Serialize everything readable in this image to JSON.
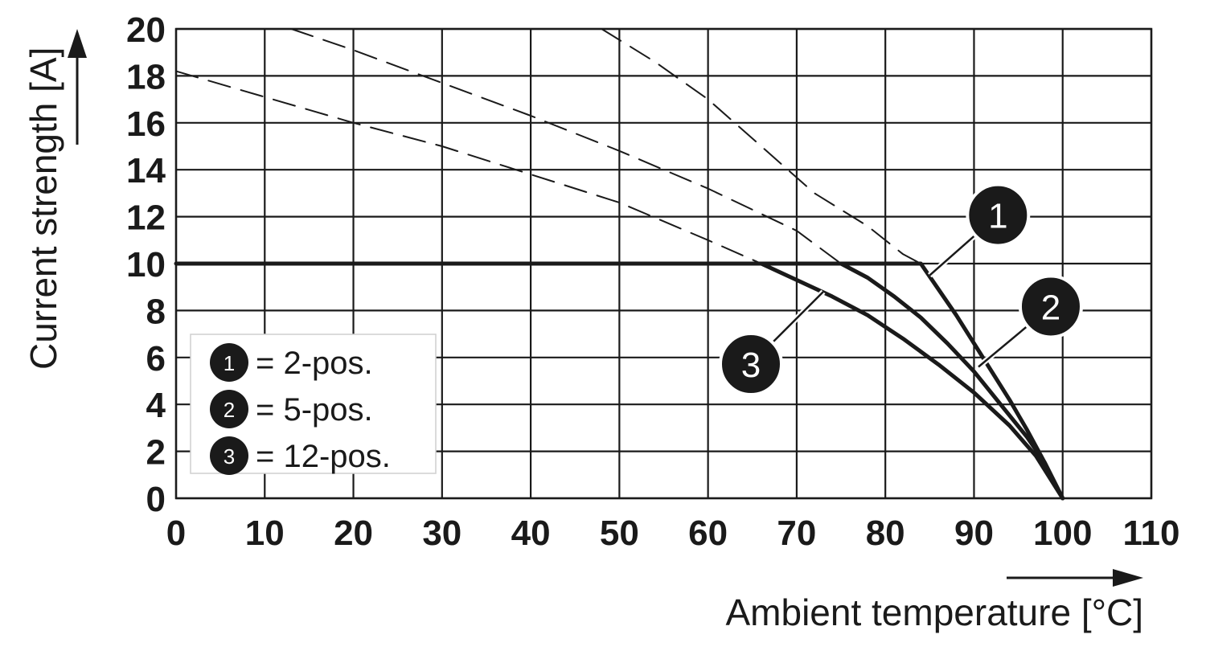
{
  "chart_data": {
    "type": "line",
    "xlabel": "Ambient temperature [°C]",
    "ylabel": "Current strength [A]",
    "xlim": [
      0,
      110
    ],
    "ylim": [
      0,
      20
    ],
    "x_ticks": [
      "0",
      "10",
      "20",
      "30",
      "40",
      "50",
      "60",
      "70",
      "80",
      "90",
      "100",
      "110"
    ],
    "y_ticks": [
      "0",
      "2",
      "4",
      "6",
      "8",
      "10",
      "12",
      "14",
      "16",
      "18",
      "20"
    ],
    "grid": true,
    "legend": {
      "placement": "bottom-left",
      "entries": [
        {
          "marker": "1",
          "label": "= 2-pos."
        },
        {
          "marker": "2",
          "label": "= 5-pos."
        },
        {
          "marker": "3",
          "label": "= 12-pos."
        }
      ]
    },
    "series": [
      {
        "marker": "1",
        "style": "solid",
        "points": [
          [
            0,
            10
          ],
          [
            84,
            10
          ],
          [
            86,
            8.9
          ],
          [
            88,
            7.8
          ],
          [
            90,
            6.6
          ],
          [
            92,
            5.4
          ],
          [
            94,
            4.2
          ],
          [
            96,
            2.9
          ],
          [
            98,
            1.5
          ],
          [
            100,
            0
          ]
        ]
      },
      {
        "marker": "2",
        "style": "solid",
        "points": [
          [
            75,
            10
          ],
          [
            78,
            9.4
          ],
          [
            81,
            8.6
          ],
          [
            84,
            7.7
          ],
          [
            87,
            6.6
          ],
          [
            90,
            5.4
          ],
          [
            93,
            4.0
          ],
          [
            96,
            2.6
          ],
          [
            98,
            1.5
          ],
          [
            100,
            0
          ]
        ]
      },
      {
        "marker": "3",
        "style": "solid",
        "points": [
          [
            66,
            10
          ],
          [
            70,
            9.3
          ],
          [
            74,
            8.6
          ],
          [
            78,
            7.8
          ],
          [
            82,
            6.8
          ],
          [
            86,
            5.7
          ],
          [
            90,
            4.5
          ],
          [
            94,
            3.1
          ],
          [
            97,
            1.8
          ],
          [
            100,
            0
          ]
        ]
      },
      {
        "marker": "1",
        "style": "dashed",
        "points": [
          [
            48,
            20
          ],
          [
            54,
            18.6
          ],
          [
            60,
            17.0
          ],
          [
            66,
            15.0
          ],
          [
            72,
            13.0
          ],
          [
            78,
            11.6
          ],
          [
            82,
            10.4
          ],
          [
            84,
            10
          ]
        ]
      },
      {
        "marker": "2",
        "style": "dashed",
        "points": [
          [
            13,
            20
          ],
          [
            20,
            19.1
          ],
          [
            30,
            17.7
          ],
          [
            40,
            16.3
          ],
          [
            50,
            14.8
          ],
          [
            60,
            13.2
          ],
          [
            70,
            11.4
          ],
          [
            75,
            10
          ]
        ]
      },
      {
        "marker": "3",
        "style": "dashed",
        "points": [
          [
            0,
            18.2
          ],
          [
            10,
            17.1
          ],
          [
            20,
            16.0
          ],
          [
            30,
            15.0
          ],
          [
            40,
            13.8
          ],
          [
            50,
            12.6
          ],
          [
            60,
            11.0
          ],
          [
            66,
            10
          ]
        ]
      }
    ],
    "callouts": [
      {
        "marker": "1",
        "anchor": [
          85,
          9.5
        ]
      },
      {
        "marker": "2",
        "anchor": [
          90.5,
          5.6
        ]
      },
      {
        "marker": "3",
        "anchor": [
          73,
          8.8
        ]
      }
    ]
  }
}
